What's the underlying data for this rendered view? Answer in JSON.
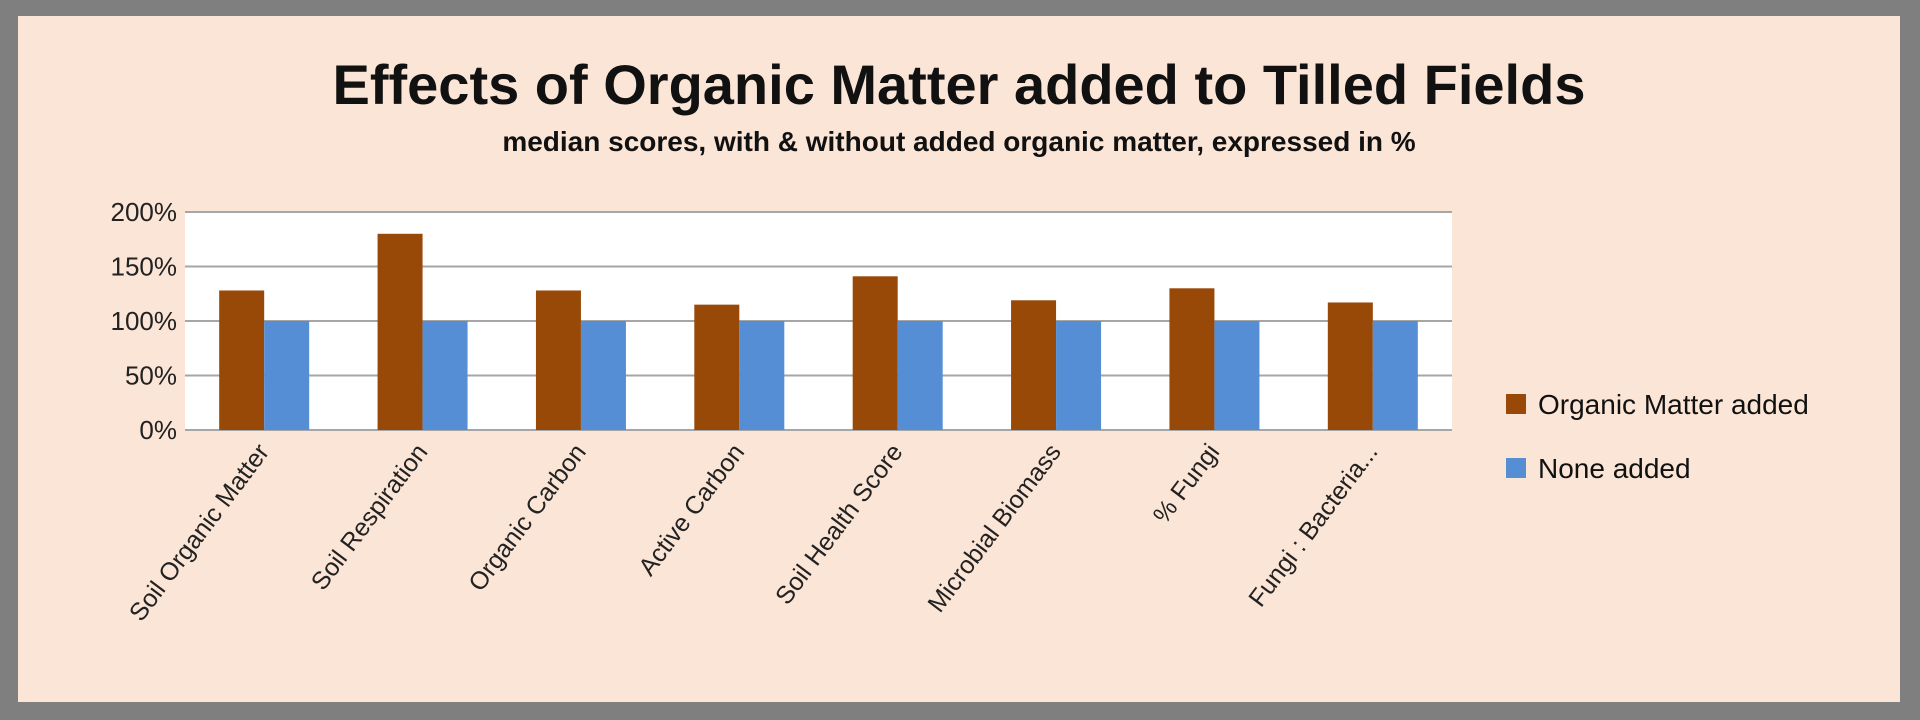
{
  "colors": {
    "frame": "#7f7f7f",
    "panel": "#fbe5d6",
    "plot_area": "#ffffff",
    "gridline": "#a6a6a6",
    "organic": "#984807",
    "none": "#558ed5"
  },
  "chart_data": {
    "type": "bar",
    "title": "Effects of Organic Matter added to Tilled Fields",
    "subtitle": "median scores, with & without added organic matter, expressed in %",
    "xlabel": "",
    "ylabel": "",
    "categories": [
      "Soil Organic Matter",
      "Soil Respiration",
      "Organic Carbon",
      "Active Carbon",
      "Soil Health Score",
      "Microbial Biomass",
      "% Fungi",
      "Fungi : Bacteria..."
    ],
    "series": [
      {
        "name": "Organic Matter added",
        "color": "#984807",
        "values": [
          128,
          180,
          128,
          115,
          141,
          119,
          130,
          117
        ]
      },
      {
        "name": "None added",
        "color": "#558ed5",
        "values": [
          100,
          100,
          100,
          100,
          100,
          100,
          100,
          100
        ]
      }
    ],
    "ylim": [
      0,
      200
    ],
    "yticks": [
      0,
      50,
      100,
      150,
      200
    ],
    "ytick_labels": [
      "0%",
      "50%",
      "100%",
      "150%",
      "200%"
    ],
    "grid": true,
    "legend_position": "right"
  }
}
